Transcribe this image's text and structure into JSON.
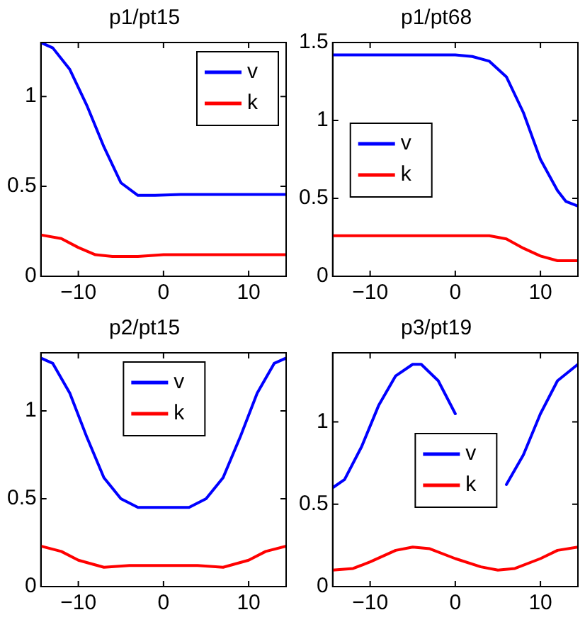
{
  "chart_data": [
    {
      "type": "line",
      "title": "p1/pt15",
      "xlim": [
        -14.4,
        14.4
      ],
      "xticks": [
        -10,
        0,
        10
      ],
      "ylim": [
        0,
        1.3
      ],
      "yticks": [
        0,
        0.5,
        1
      ],
      "legend": "top right",
      "grid": false,
      "series": [
        {
          "name": "v",
          "color": "#0000ff",
          "x": [
            -14.4,
            -13,
            -11,
            -9,
            -7,
            -5,
            -3,
            -1,
            2,
            14.4
          ],
          "values": [
            1.3,
            1.27,
            1.15,
            0.95,
            0.72,
            0.52,
            0.45,
            0.45,
            0.455,
            0.455
          ]
        },
        {
          "name": "k",
          "color": "#ff0000",
          "x": [
            -14.4,
            -12,
            -10,
            -8,
            -6,
            -3,
            0,
            14.4
          ],
          "values": [
            0.23,
            0.21,
            0.16,
            0.12,
            0.11,
            0.11,
            0.12,
            0.12
          ]
        }
      ]
    },
    {
      "type": "line",
      "title": "p1/pt68",
      "xlim": [
        -14.4,
        14.4
      ],
      "xticks": [
        -10,
        0,
        10
      ],
      "ylim": [
        0,
        1.5
      ],
      "yticks": [
        0,
        0.5,
        1,
        1.5
      ],
      "legend": "left",
      "grid": false,
      "series": [
        {
          "name": "v",
          "color": "#0000ff",
          "x": [
            -14.4,
            0,
            2,
            4,
            6,
            8,
            10,
            12,
            13,
            14.4
          ],
          "values": [
            1.42,
            1.42,
            1.41,
            1.38,
            1.28,
            1.05,
            0.75,
            0.55,
            0.48,
            0.45
          ]
        },
        {
          "name": "k",
          "color": "#ff0000",
          "x": [
            -14.4,
            0,
            4,
            6,
            8,
            10,
            12,
            14.4
          ],
          "values": [
            0.26,
            0.26,
            0.26,
            0.24,
            0.18,
            0.13,
            0.1,
            0.1
          ]
        }
      ]
    },
    {
      "type": "line",
      "title": "p2/pt15",
      "xlim": [
        -14.4,
        14.4
      ],
      "xticks": [
        -10,
        0,
        10
      ],
      "ylim": [
        0,
        1.33
      ],
      "yticks": [
        0,
        0.5,
        1
      ],
      "legend": "top",
      "grid": false,
      "series": [
        {
          "name": "v",
          "color": "#0000ff",
          "x": [
            -14.4,
            -13,
            -11,
            -9,
            -7,
            -5,
            -3,
            0,
            3,
            5,
            7,
            9,
            11,
            13,
            14.4
          ],
          "values": [
            1.3,
            1.27,
            1.1,
            0.85,
            0.62,
            0.5,
            0.45,
            0.45,
            0.45,
            0.5,
            0.62,
            0.85,
            1.1,
            1.27,
            1.3
          ]
        },
        {
          "name": "k",
          "color": "#ff0000",
          "x": [
            -14.4,
            -12,
            -10,
            -7,
            -4,
            0,
            4,
            7,
            10,
            12,
            14.4
          ],
          "values": [
            0.23,
            0.2,
            0.15,
            0.11,
            0.12,
            0.12,
            0.12,
            0.11,
            0.15,
            0.2,
            0.23
          ]
        }
      ]
    },
    {
      "type": "line",
      "title": "p3/pt19",
      "xlim": [
        -14.4,
        14.4
      ],
      "xticks": [
        -10,
        0,
        10
      ],
      "ylim": [
        0,
        1.42
      ],
      "yticks": [
        0,
        0.5,
        1
      ],
      "legend": "center",
      "grid": false,
      "series": [
        {
          "name": "v",
          "color": "#0000ff",
          "x": [
            -14.4,
            -13,
            -11,
            -9,
            -7,
            -5,
            -4,
            -2,
            0,
            2,
            3,
            4,
            6,
            8,
            10,
            12,
            14.4
          ],
          "values": [
            0.6,
            0.65,
            0.85,
            1.1,
            1.28,
            1.35,
            1.35,
            1.25,
            1.05,
            null,
            null,
            null,
            0.62,
            0.8,
            1.05,
            1.25,
            1.35
          ]
        },
        {
          "name": "k",
          "color": "#ff0000",
          "x": [
            -14.4,
            -12,
            -10,
            -7,
            -5,
            -3,
            0,
            3,
            5,
            7,
            10,
            12,
            14.4
          ],
          "values": [
            0.1,
            0.11,
            0.15,
            0.22,
            0.24,
            0.23,
            0.17,
            0.12,
            0.1,
            0.11,
            0.17,
            0.22,
            0.24
          ]
        }
      ]
    }
  ]
}
